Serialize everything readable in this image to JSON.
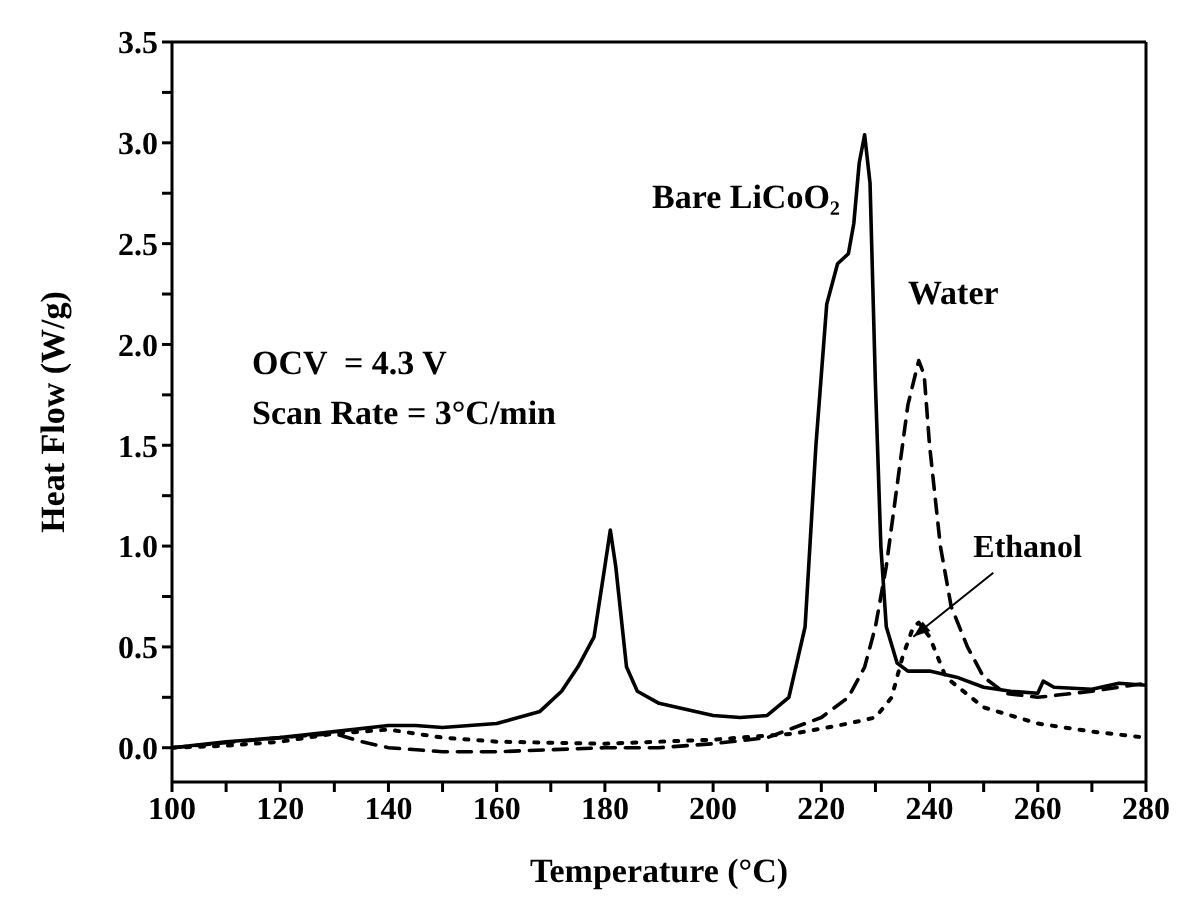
{
  "chart_data": {
    "type": "line",
    "xlabel": "Temperature (°C)",
    "ylabel": "Heat Flow (W/g)",
    "xlim": [
      100,
      280
    ],
    "xticks": [
      100,
      {
        "value": 110,
        "label": null
      },
      120,
      {
        "value": 130,
        "label": null
      },
      140,
      {
        "value": 150,
        "label": null
      },
      160,
      {
        "value": 170,
        "label": null
      },
      180,
      {
        "value": 190,
        "label": null
      },
      200,
      {
        "value": 210,
        "label": null
      },
      220,
      {
        "value": 230,
        "label": null
      },
      240,
      {
        "value": 250,
        "label": null
      },
      260,
      {
        "value": 270,
        "label": null
      },
      280
    ],
    "ylim": [
      -0.17,
      3.5
    ],
    "yticks": [
      {
        "value": 0,
        "label": "0.0"
      },
      {
        "value": 0.25,
        "label": null
      },
      {
        "value": 0.5,
        "label": "0.5"
      },
      {
        "value": 0.75,
        "label": null
      },
      {
        "value": 1,
        "label": "1.0"
      },
      {
        "value": 1.25,
        "label": null
      },
      {
        "value": 1.5,
        "label": "1.5"
      },
      {
        "value": 1.75,
        "label": null
      },
      {
        "value": 2,
        "label": "2.0"
      },
      {
        "value": 2.25,
        "label": null
      },
      {
        "value": 2.5,
        "label": "2.5"
      },
      {
        "value": 2.75,
        "label": null
      },
      {
        "value": 3,
        "label": "3.0"
      },
      {
        "value": 3.25,
        "label": null
      },
      {
        "value": 3.5,
        "label": "3.5"
      }
    ],
    "grid": false,
    "legend": false,
    "marker": "none",
    "series": [
      {
        "color": "#000000",
        "line_style": "solid",
        "x": [
          100,
          110,
          120,
          130,
          140,
          145,
          150,
          160,
          168,
          172,
          175,
          178,
          180,
          181,
          182,
          184,
          186,
          190,
          200,
          205,
          210,
          214,
          217,
          219,
          221,
          223,
          225,
          226,
          227,
          228,
          229,
          230,
          231,
          232,
          234,
          236,
          240,
          245,
          250,
          255,
          260,
          261,
          263,
          270,
          275,
          280
        ],
        "values": [
          0,
          0.03,
          0.05,
          0.08,
          0.11,
          0.11,
          0.1,
          0.12,
          0.18,
          0.28,
          0.4,
          0.55,
          0.9,
          1.08,
          0.9,
          0.4,
          0.28,
          0.22,
          0.16,
          0.15,
          0.16,
          0.25,
          0.6,
          1.5,
          2.2,
          2.4,
          2.45,
          2.6,
          2.9,
          3.04,
          2.8,
          1.8,
          1,
          0.6,
          0.42,
          0.38,
          0.38,
          0.35,
          0.3,
          0.28,
          0.27,
          0.33,
          0.3,
          0.29,
          0.32,
          0.31
        ]
      },
      {
        "color": "#000000",
        "line_style": "dashed",
        "x": [
          100,
          120,
          130,
          135,
          140,
          150,
          160,
          180,
          190,
          200,
          210,
          220,
          225,
          228,
          230,
          232,
          234,
          236,
          238,
          239,
          240,
          242,
          244,
          247,
          250,
          254,
          260,
          270,
          280
        ],
        "values": [
          0,
          0.05,
          0.07,
          0.03,
          0,
          -0.02,
          -0.02,
          0,
          0,
          0.02,
          0.05,
          0.15,
          0.25,
          0.4,
          0.6,
          0.9,
          1.3,
          1.7,
          1.92,
          1.85,
          1.5,
          1,
          0.7,
          0.5,
          0.35,
          0.27,
          0.25,
          0.28,
          0.32
        ]
      },
      {
        "color": "#000000",
        "line_style": "dotted",
        "x": [
          100,
          110,
          120,
          130,
          140,
          150,
          160,
          180,
          200,
          215,
          225,
          230,
          233,
          235,
          237,
          238,
          240,
          243,
          250,
          260,
          270,
          280
        ],
        "values": [
          0,
          0.01,
          0.03,
          0.07,
          0.09,
          0.05,
          0.03,
          0.02,
          0.04,
          0.07,
          0.12,
          0.15,
          0.25,
          0.45,
          0.6,
          0.62,
          0.55,
          0.35,
          0.2,
          0.12,
          0.08,
          0.05
        ]
      }
    ],
    "annotations": [
      "Bare LiCoO₂",
      "Water",
      "OCV  = 4.3 V",
      "Scan Rate = 3°C/min",
      {
        "text": "Ethanol",
        "x": 237,
        "y": 0.55
      }
    ]
  }
}
